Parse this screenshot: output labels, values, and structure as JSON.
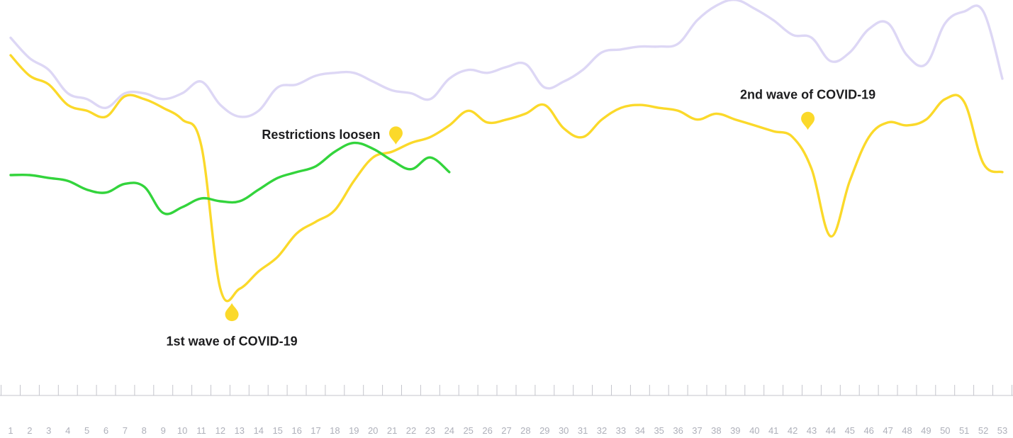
{
  "chart_data": {
    "type": "line",
    "title": "",
    "xlabel": "",
    "ylabel": "",
    "x": [
      1,
      2,
      3,
      4,
      5,
      6,
      7,
      8,
      9,
      10,
      11,
      12,
      13,
      14,
      15,
      16,
      17,
      18,
      19,
      20,
      21,
      22,
      23,
      24,
      25,
      26,
      27,
      28,
      29,
      30,
      31,
      32,
      33,
      34,
      35,
      36,
      37,
      38,
      39,
      40,
      41,
      42,
      43,
      44,
      45,
      46,
      47,
      48,
      49,
      50,
      51,
      52,
      53
    ],
    "tick_labels": [
      "1",
      "2",
      "3",
      "4",
      "5",
      "6",
      "7",
      "8",
      "9",
      "10",
      "11",
      "12",
      "13",
      "14",
      "15",
      "16",
      "17",
      "18",
      "19",
      "20",
      "21",
      "22",
      "23",
      "24",
      "25",
      "26",
      "27",
      "28",
      "29",
      "30",
      "31",
      "32",
      "33",
      "34",
      "35",
      "36",
      "37",
      "38",
      "39",
      "40",
      "41",
      "42",
      "43",
      "44",
      "45",
      "46",
      "47",
      "48",
      "49",
      "50",
      "51",
      "52",
      "53"
    ],
    "xlim": [
      1,
      53
    ],
    "ylim": [
      0,
      100
    ],
    "grid": false,
    "legend": "none",
    "series": [
      {
        "key": "lavender",
        "color": "#ddd7f5",
        "values": [
          89,
          82,
          78,
          70,
          68,
          65,
          70,
          70,
          68,
          70,
          74,
          66,
          62,
          64,
          72,
          73,
          76,
          77,
          77,
          74,
          71,
          70,
          68,
          75,
          78,
          77,
          79,
          80,
          72,
          74,
          78,
          84,
          85,
          86,
          86,
          87,
          95,
          100,
          102,
          99,
          95,
          90,
          89,
          81,
          84,
          92,
          94,
          83,
          80,
          94,
          98,
          98,
          75
        ]
      },
      {
        "key": "yellow",
        "color": "#fbd92a",
        "values": [
          83,
          76,
          73,
          66,
          64,
          62,
          69,
          68,
          65,
          61,
          52,
          3,
          3,
          9,
          14,
          22,
          26,
          30,
          40,
          48,
          50,
          53,
          55,
          59,
          64,
          60,
          61,
          63,
          66,
          58,
          55,
          61,
          65,
          66,
          65,
          64,
          61,
          63,
          61,
          59,
          57,
          55,
          44,
          21,
          40,
          55,
          60,
          59,
          61,
          68,
          67,
          46,
          43
        ]
      },
      {
        "key": "green",
        "color": "#33d43c",
        "values": [
          42,
          42,
          41,
          40,
          37,
          36,
          39,
          38,
          29,
          31,
          34,
          33,
          33,
          37,
          41,
          43,
          45,
          50,
          53,
          51,
          47,
          44,
          48,
          43,
          null,
          null,
          null,
          null,
          null,
          null,
          null,
          null,
          null,
          null,
          null,
          null,
          null,
          null,
          null,
          null,
          null,
          null,
          null,
          null,
          null,
          null,
          null,
          null,
          null,
          null,
          null,
          null,
          null
        ]
      }
    ],
    "annotations": [
      {
        "text": "1st wave of COVID-19",
        "x": 12.6,
        "y": 3,
        "label_side": "below"
      },
      {
        "text": "Restrictions loosen",
        "x": 21.2,
        "y": 51,
        "label_side": "left"
      },
      {
        "text": "2nd wave of COVID-19",
        "x": 42.8,
        "y": 56,
        "label_side": "above"
      }
    ],
    "marker_color": "#fbd92a"
  }
}
